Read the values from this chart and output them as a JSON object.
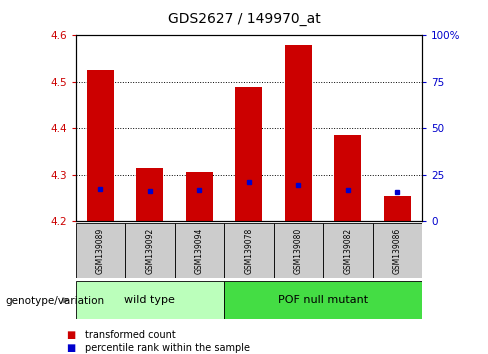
{
  "title": "GDS2627 / 149970_at",
  "samples": [
    "GSM139089",
    "GSM139092",
    "GSM139094",
    "GSM139078",
    "GSM139080",
    "GSM139082",
    "GSM139086"
  ],
  "transformed_counts": [
    4.525,
    4.315,
    4.305,
    4.49,
    4.58,
    4.385,
    4.255
  ],
  "percentile_ranks": [
    4.27,
    4.265,
    4.268,
    4.285,
    4.278,
    4.268,
    4.262
  ],
  "ylim_left": [
    4.2,
    4.6
  ],
  "ylim_right": [
    0,
    100
  ],
  "yticks_left": [
    4.2,
    4.3,
    4.4,
    4.5,
    4.6
  ],
  "yticks_right": [
    0,
    25,
    50,
    75,
    100
  ],
  "ytick_right_labels": [
    "0",
    "25",
    "50",
    "75",
    "100%"
  ],
  "groups": [
    {
      "label": "wild type",
      "indices": [
        0,
        1,
        2
      ]
    },
    {
      "label": "POF null mutant",
      "indices": [
        3,
        4,
        5,
        6
      ]
    }
  ],
  "group_label": "genotype/variation",
  "bar_color": "#cc0000",
  "blue_color": "#0000cc",
  "base": 4.2,
  "tick_label_color_left": "#cc0000",
  "tick_label_color_right": "#0000cc",
  "sample_bg_color": "#cccccc",
  "wild_type_color": "#bbffbb",
  "pof_color": "#44dd44",
  "legend_red_label": "transformed count",
  "legend_blue_label": "percentile rank within the sample"
}
